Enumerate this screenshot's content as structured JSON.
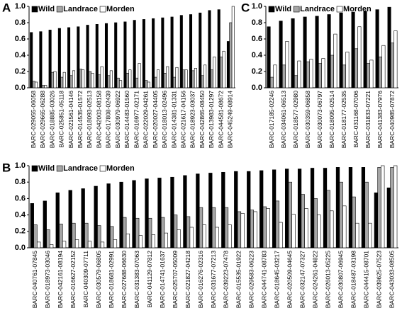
{
  "chart_data": [
    {
      "type": "bar",
      "panel_label": "A",
      "legend": "top",
      "categories": [
        "BARC-029055-06058",
        "BARC-029665-06288",
        "BARC-018885-03026",
        "BARC-025851-05118",
        "BARC-021561-04146",
        "BARC-014535-01572",
        "BARC-018093-02513",
        "BARC-042003-08158",
        "BARC-017808-02439",
        "BARC-030979-06922",
        "BARC-014483-01560",
        "BARC-016977-02171",
        "BARC-022029-04261",
        "BARC-020027-04405",
        "BARC-018013-02496",
        "BARC-014381-01331",
        "BARC-021617-04156",
        "BARC-018923-03037",
        "BARC-042865-08450",
        "BARC-013983-01297",
        "BARC-044581-08672",
        "BARC-045249-08914"
      ],
      "series": [
        {
          "name": "Wild",
          "color": "#000000",
          "values": [
            0.68,
            0.69,
            0.71,
            0.73,
            0.74,
            0.75,
            0.77,
            0.78,
            0.79,
            0.8,
            0.81,
            0.83,
            0.84,
            0.85,
            0.86,
            0.87,
            0.89,
            0.9,
            0.92,
            0.95,
            0.96,
            0.57
          ]
        },
        {
          "name": "Landrace",
          "color": "#a6a6a6",
          "values": [
            0.08,
            0.03,
            0.19,
            0.13,
            0.15,
            0.23,
            0.2,
            0.16,
            0.15,
            0.12,
            0.18,
            0.12,
            0.09,
            0.13,
            0.18,
            0.13,
            0.22,
            0.21,
            0.15,
            0.22,
            0.38,
            0.8
          ]
        },
        {
          "name": "Morden",
          "color": "#ffffff",
          "values": [
            0.07,
            0.03,
            0.2,
            0.19,
            0.21,
            0.22,
            0.18,
            0.26,
            0.21,
            0.09,
            0.22,
            0.3,
            0.07,
            0.22,
            0.26,
            0.25,
            0.22,
            0.24,
            0.28,
            0.38,
            0.45,
            1.0
          ]
        }
      ],
      "ylim": [
        0,
        1
      ],
      "yticks": [
        {
          "value": 0,
          "label": "0.0"
        },
        0.2,
        0.4,
        0.6,
        0.8,
        {
          "value": 1,
          "label": "1.0"
        }
      ]
    },
    {
      "type": "bar",
      "panel_label": "B",
      "legend": "top",
      "categories": [
        "BARC-040761-07845",
        "BARC-018973-03046",
        "BARC-042161-08194",
        "BARC-016627-02152",
        "BARC-040309-07711",
        "BARC-030579-06805",
        "BARC-018681-02991",
        "BARC-027688-06630",
        "BARC-031383-07063",
        "BARC-041129-07812",
        "BARC-014741-01637",
        "BARC-025707-05009",
        "BARC-021827-04218",
        "BARC-016276-02316",
        "BARC-031677-07213",
        "BARC-039223-07478",
        "BARC-015535-01922",
        "BARC-029583-06223",
        "BARC-044741-08783",
        "BARC-018645-03217",
        "BARC-020509-04645",
        "BARC-032147-07327",
        "BARC-024261-04822",
        "BARC-026013-05225",
        "BARC-030807-06945",
        "BARC-018487-03198",
        "BARC-044415-08701",
        "BARC-039625-07523",
        "BARC-043033-08505"
      ],
      "series": [
        {
          "name": "Wild",
          "color": "#000000",
          "values": [
            0.54,
            0.57,
            0.67,
            0.7,
            0.72,
            0.75,
            0.78,
            0.8,
            0.82,
            0.84,
            0.85,
            0.86,
            0.88,
            0.9,
            0.91,
            0.92,
            0.93,
            0.93,
            0.94,
            0.95,
            0.96,
            0.96,
            0.97,
            0.97,
            0.98,
            0.98,
            0.98,
            0.67,
            0.73
          ]
        },
        {
          "name": "Landrace",
          "color": "#a6a6a6",
          "values": [
            0.28,
            0.22,
            0.29,
            0.3,
            0.3,
            0.27,
            0.26,
            0.37,
            0.36,
            0.36,
            0.37,
            0.4,
            0.38,
            0.49,
            0.49,
            0.49,
            0.44,
            0.46,
            0.5,
            0.57,
            0.8,
            0.65,
            0.6,
            0.7,
            0.8,
            0.62,
            0.8,
            0.98,
            0.98
          ]
        },
        {
          "name": "Morden",
          "color": "#ffffff",
          "values": [
            0.07,
            0.04,
            0.08,
            0.1,
            0.08,
            0.07,
            0.1,
            0.17,
            0.15,
            0.16,
            0.18,
            0.22,
            0.25,
            0.28,
            0.25,
            0.28,
            0.42,
            0.44,
            0.48,
            0.31,
            0.41,
            0.48,
            0.4,
            0.45,
            0.51,
            0.3,
            0.3,
            1.0,
            1.0
          ]
        }
      ],
      "ylim": [
        0,
        1
      ],
      "yticks": [
        {
          "value": 0,
          "label": "0.0"
        },
        0.2,
        0.4,
        0.6,
        0.8,
        {
          "value": 1,
          "label": "1.0"
        }
      ]
    },
    {
      "type": "bar",
      "panel_label": "C",
      "legend": "top",
      "categories": [
        "BARC-017185-02246",
        "BARC-034061-06513",
        "BARC-018577-02980",
        "BARC-030359-06858",
        "BARC-030073-06797",
        "BARC-018095-02514",
        "BARC-018177-02535",
        "BARC-031168-07006",
        "BARC-031833-07221",
        "BARC-041383-07976",
        "BARC-040985-07872"
      ],
      "series": [
        {
          "name": "Wild",
          "color": "#000000",
          "values": [
            0.75,
            0.82,
            0.85,
            0.87,
            0.88,
            0.9,
            0.92,
            0.93,
            0.94,
            0.96,
            0.99
          ]
        },
        {
          "name": "Landrace",
          "color": "#a6a6a6",
          "values": [
            0.13,
            0.28,
            0.15,
            0.32,
            0.3,
            0.4,
            0.28,
            0.48,
            0.3,
            0.38,
            0.55
          ]
        },
        {
          "name": "Morden",
          "color": "#ffffff",
          "values": [
            0.28,
            0.57,
            0.33,
            0.35,
            0.36,
            0.66,
            0.44,
            0.75,
            0.34,
            0.52,
            0.7
          ]
        }
      ],
      "ylim": [
        0,
        1
      ],
      "yticks": [
        {
          "value": 0,
          "label": "0.0"
        },
        0.2,
        0.4,
        0.6,
        0.8,
        {
          "value": 1,
          "label": "1.0"
        }
      ]
    }
  ]
}
